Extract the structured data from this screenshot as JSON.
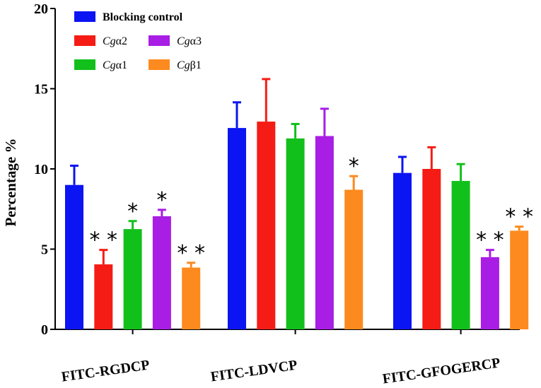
{
  "chart_data": {
    "type": "bar",
    "title": "",
    "xlabel": "",
    "ylabel": "Percentage %",
    "ylim": [
      0,
      20
    ],
    "yticks": [
      0,
      5,
      10,
      15,
      20
    ],
    "grid": false,
    "legend_position": "top-left",
    "categories": [
      "FITC-RGDCP",
      "FITC-LDVCP",
      "FITC-GFOGERCP"
    ],
    "series": [
      {
        "name": "Blocking control",
        "prefix": "",
        "suffix": "",
        "color": "#0b14f2",
        "values": [
          9.0,
          12.55,
          9.75
        ],
        "errors": [
          1.2,
          1.6,
          1.0
        ],
        "annotations": [
          "",
          "",
          ""
        ]
      },
      {
        "name": "Cgα2",
        "prefix": "Cg",
        "suffix": "α2",
        "color": "#f41c15",
        "values": [
          4.05,
          12.95,
          10.0
        ],
        "errors": [
          0.9,
          2.65,
          1.35
        ],
        "annotations": [
          "**",
          "",
          ""
        ]
      },
      {
        "name": "Cgα1",
        "prefix": "Cg",
        "suffix": "α1",
        "color": "#12c01c",
        "values": [
          6.25,
          11.9,
          9.25
        ],
        "errors": [
          0.5,
          0.9,
          1.05
        ],
        "annotations": [
          "*",
          "",
          ""
        ]
      },
      {
        "name": "Cgα3",
        "prefix": "Cg",
        "suffix": "α3",
        "color": "#a81ee4",
        "values": [
          7.05,
          12.05,
          4.5
        ],
        "errors": [
          0.4,
          1.7,
          0.45
        ],
        "annotations": [
          "*",
          "",
          "**"
        ]
      },
      {
        "name": "Cgβ1",
        "prefix": "Cg",
        "suffix": "β1",
        "color": "#fd8a1e",
        "values": [
          3.85,
          8.7,
          6.15
        ],
        "errors": [
          0.3,
          0.85,
          0.25
        ],
        "annotations": [
          "**",
          "*",
          "**"
        ]
      }
    ]
  }
}
